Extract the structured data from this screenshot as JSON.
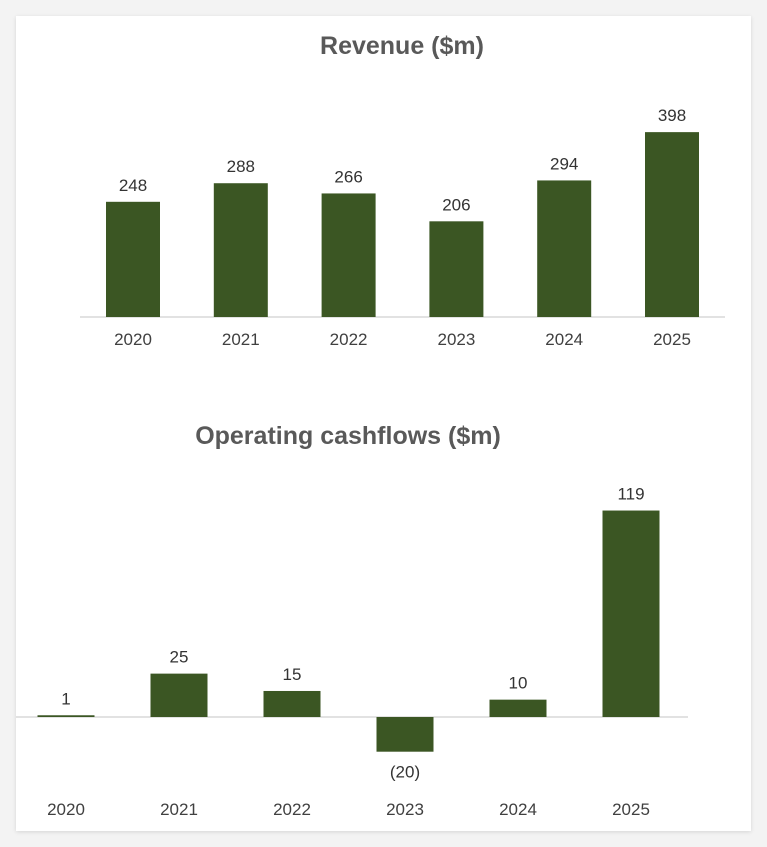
{
  "chart_data": [
    {
      "type": "bar",
      "title": "Revenue ($m)",
      "categories": [
        "2020",
        "2021",
        "2022",
        "2023",
        "2024",
        "2025"
      ],
      "values": [
        248,
        288,
        266,
        206,
        294,
        398
      ],
      "labels": [
        "248",
        "288",
        "266",
        "206",
        "294",
        "398"
      ],
      "ylim": [
        0,
        398
      ],
      "color": "#3b5623",
      "grid": false
    },
    {
      "type": "bar",
      "title": "Operating cashflows ($m)",
      "categories": [
        "2020",
        "2021",
        "2022",
        "2023",
        "2024",
        "2025"
      ],
      "values": [
        1,
        25,
        15,
        -20,
        10,
        119
      ],
      "labels": [
        "1",
        "25",
        "15",
        "(20)",
        "10",
        "119"
      ],
      "ylim": [
        -20,
        119
      ],
      "color": "#3b5623",
      "grid": false
    }
  ]
}
